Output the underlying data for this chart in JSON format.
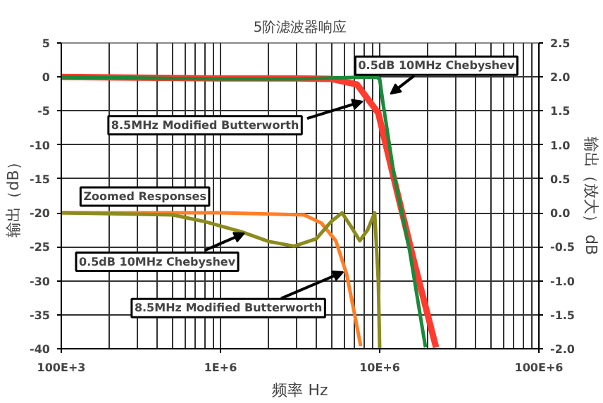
{
  "chart_data": {
    "type": "line",
    "title": "5阶滤波器响应",
    "xlabel": "频率 Hz",
    "ylabel": "输出（dB）",
    "y2label": "输出（放大） dB",
    "log": "x",
    "grid": true,
    "marker": "none",
    "line_style": "solid",
    "xlim": [
      100000,
      100000000
    ],
    "xticks": [
      {
        "value": 100000,
        "label": "100E+3"
      },
      {
        "value": 1000000,
        "label": "1E+6"
      },
      {
        "value": 10000000,
        "label": "10E+6"
      },
      {
        "value": 100000000,
        "label": "100E+6"
      }
    ],
    "ylim": [
      -40,
      5
    ],
    "yticks": [
      5,
      0,
      -5,
      -10,
      -15,
      -20,
      -25,
      -30,
      -35,
      -40
    ],
    "y2lim": [
      -2.0,
      2.5
    ],
    "y2ticks": [
      {
        "value": 2.5,
        "label": "2.5"
      },
      {
        "value": 2.0,
        "label": "2.0"
      },
      {
        "value": 1.5,
        "label": "1.5"
      },
      {
        "value": 1.0,
        "label": "1.0"
      },
      {
        "value": 0.5,
        "label": "0.5"
      },
      {
        "value": 0.0,
        "label": "0.0"
      },
      {
        "value": -0.5,
        "label": "-0.5"
      },
      {
        "value": -1.0,
        "label": "-1.0"
      },
      {
        "value": -1.5,
        "label": "-1.5"
      },
      {
        "value": -2.0,
        "label": "-2.0"
      }
    ],
    "series": [
      {
        "color": "#ff3b2f",
        "x": [
          100000,
          1000000,
          3000000,
          5000000,
          7200000,
          9800000,
          12300000,
          16600000,
          22600000
        ],
        "values": [
          0,
          -0.2,
          -0.2,
          -0.3,
          -1.1,
          -5.3,
          -15,
          -27.6,
          -39.8
        ]
      },
      {
        "color": "#1a8a3a",
        "x": [
          100000,
          1000000,
          3000000,
          6000000,
          9500000,
          10000000,
          10500000,
          12300000,
          15400000,
          19400000
        ],
        "values": [
          0,
          -0.3,
          -0.3,
          -0.1,
          0,
          -0.3,
          -3.9,
          -14.4,
          -25.5,
          -39.8
        ]
      },
      {
        "color": "#ff7f27",
        "axis": "y2",
        "x": [
          100000,
          1000000,
          3350000,
          4300000,
          5300000,
          6200000,
          6900000,
          7600000
        ],
        "values": [
          0,
          0,
          -0.03,
          -0.15,
          -0.41,
          -0.9,
          -1.45,
          -1.96
        ]
      },
      {
        "color": "#8b8b1e",
        "axis": "y2",
        "x": [
          100000,
          500000,
          800000,
          1360000,
          2000000,
          2900000,
          4000000,
          5000000,
          5800000,
          6600000,
          7500000,
          8400000,
          9300000,
          9800000,
          10000000
        ],
        "values": [
          0,
          -0.03,
          -0.13,
          -0.28,
          -0.42,
          -0.49,
          -0.38,
          -0.12,
          0,
          -0.2,
          -0.41,
          -0.25,
          0,
          -1.0,
          -2.0
        ]
      }
    ],
    "annotations": [
      {
        "text": "0.5dB 10MHz Chebyshev",
        "x": 11700000,
        "y": -2.5
      },
      {
        "text": "8.5MHz Modified Butterworth",
        "x": 7800000,
        "y": -3.6
      },
      "Zoomed Responses",
      {
        "text": "0.5dB 10MHz Chebyshev",
        "x": 1410000,
        "y": -23
      },
      {
        "text": "8.5MHz Modified Butterworth",
        "x": 5900000,
        "y": -28.7
      }
    ]
  }
}
